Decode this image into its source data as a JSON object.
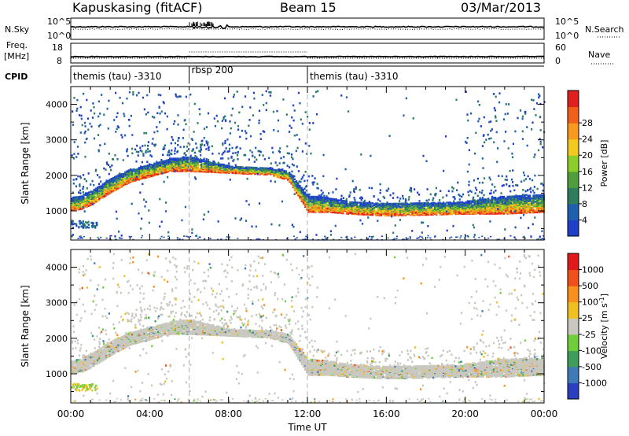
{
  "header": {
    "station": "Kapuskasing (fitACF)",
    "beam": "Beam 15",
    "date": "03/Mar/2013"
  },
  "strips": {
    "nsky_label": "N.Sky",
    "nsearch_label": "N.Search",
    "freq_label_1": "Freq.",
    "freq_label_2": "[MHz]",
    "nave_label": "Nave",
    "cpid_label": "CPID",
    "nsky_ticks_left": [
      "10^5",
      "10^0"
    ],
    "nsky_ticks_right": [
      "10^5",
      "10^0"
    ],
    "freq_ticks_left": [
      "18",
      "8"
    ],
    "nave_ticks_right": [
      "60",
      "0"
    ],
    "cpid_segments": [
      {
        "start": 0,
        "end": 6,
        "label": "themis (tau) -3310"
      },
      {
        "start": 6,
        "end": 12,
        "label": "rbsp 200"
      },
      {
        "start": 12,
        "end": 24,
        "label": "themis (tau) -3310"
      }
    ]
  },
  "chart_data": [
    {
      "type": "heatmap",
      "title": "Power",
      "xlabel": "Time UT",
      "ylabel": "Slant Range [km]",
      "x_unit": "hours UT",
      "xlim": [
        0,
        24
      ],
      "ylim": [
        180,
        4500
      ],
      "x_ticks": [
        "00:00",
        "04:00",
        "08:00",
        "12:00",
        "16:00",
        "20:00",
        "00:00"
      ],
      "y_ticks": [
        "1000",
        "2000",
        "3000",
        "4000"
      ],
      "colorbar_label": "Power [dB]",
      "colorbar_ticks": [
        "4",
        "8",
        "12",
        "16",
        "20",
        "24",
        "28"
      ],
      "colorbar_colors": [
        "#1f3fc9",
        "#1f5fb0",
        "#2e7d5e",
        "#4f9e3b",
        "#8ccd2a",
        "#f2c91d",
        "#f79a1d",
        "#f0601a",
        "#e21f1f"
      ],
      "mode_change_lines_x": [
        6,
        12
      ],
      "main_echo_band": {
        "x": [
          0,
          0.5,
          1,
          2,
          3,
          4,
          5,
          6,
          8,
          10,
          11,
          12,
          13,
          14,
          16,
          18,
          20,
          22,
          24
        ],
        "lower_km": [
          1050,
          1080,
          1200,
          1550,
          1850,
          2000,
          2150,
          2150,
          2100,
          2050,
          1900,
          1000,
          1000,
          950,
          900,
          920,
          950,
          950,
          1000
        ],
        "upper_km": [
          1400,
          1450,
          1600,
          1950,
          2200,
          2350,
          2500,
          2550,
          2300,
          2250,
          2150,
          1450,
          1400,
          1300,
          1250,
          1250,
          1300,
          1450,
          1500
        ]
      }
    },
    {
      "type": "heatmap",
      "title": "Velocity",
      "xlabel": "Time UT",
      "ylabel": "Slant Range [km]",
      "x_unit": "hours UT",
      "xlim": [
        0,
        24
      ],
      "ylim": [
        180,
        4500
      ],
      "x_ticks": [
        "00:00",
        "04:00",
        "08:00",
        "12:00",
        "16:00",
        "20:00",
        "00:00"
      ],
      "y_ticks": [
        "1000",
        "2000",
        "3000",
        "4000"
      ],
      "colorbar_label": "Velocity [m s^-1]",
      "colorbar_ticks": [
        "1000",
        "500",
        "100",
        "25",
        "-25",
        "-100",
        "-500",
        "-1000"
      ],
      "colorbar_colors": [
        "#2a3fc0",
        "#3f7ab8",
        "#3f9e5a",
        "#6fcf3a",
        "#c8c8c0",
        "#f0c020",
        "#f7901d",
        "#f0501a",
        "#e01a1a"
      ],
      "mode_change_lines_x": [
        6,
        12
      ],
      "dominant_color": "#c8c8c0"
    }
  ]
}
